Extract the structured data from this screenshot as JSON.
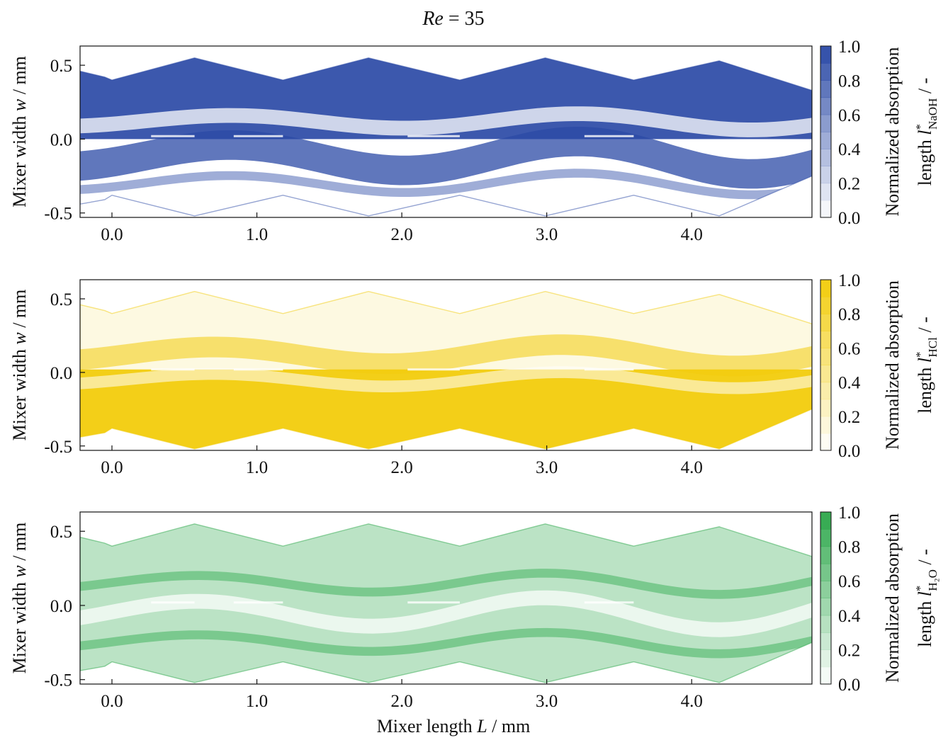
{
  "figure": {
    "title_var": "Re",
    "title_eq": " = 35",
    "xlabel_main": "Mixer length ",
    "xlabel_var": "L",
    "xlabel_unit": " / mm"
  },
  "chart_data": [
    {
      "type": "heatmap",
      "ylabel_main": "Mixer width ",
      "ylabel_var": "w",
      "ylabel_unit": " / mm",
      "xlim": [
        -0.22,
        4.83
      ],
      "ylim": [
        -0.53,
        0.63
      ],
      "x_ticks": [
        0.0,
        1.0,
        2.0,
        3.0,
        4.0
      ],
      "x_tick_labels": [
        "0.0",
        "1.0",
        "2.0",
        "3.0",
        "4.0"
      ],
      "y_ticks": [
        0.5,
        0.0,
        -0.5
      ],
      "y_tick_labels": [
        "0.5",
        "0.0",
        "-0.5"
      ],
      "colorbar": {
        "label_line1": "Normalized absorption",
        "label_line2": "length ",
        "label_var": "l",
        "label_sup": "*",
        "label_sub": "NaOH",
        "label_tail": " / -",
        "ticks": [
          "1.0",
          "0.8",
          "0.6",
          "0.4",
          "0.2",
          "0.0"
        ],
        "color": "#2b4aa6"
      },
      "concentrated_side": "top"
    },
    {
      "type": "heatmap",
      "ylabel_main": "Mixer width ",
      "ylabel_var": "w",
      "ylabel_unit": " / mm",
      "xlim": [
        -0.22,
        4.83
      ],
      "ylim": [
        -0.53,
        0.63
      ],
      "x_ticks": [
        0.0,
        1.0,
        2.0,
        3.0,
        4.0
      ],
      "x_tick_labels": [
        "0.0",
        "1.0",
        "2.0",
        "3.0",
        "4.0"
      ],
      "y_ticks": [
        0.5,
        0.0,
        -0.5
      ],
      "y_tick_labels": [
        "0.5",
        "0.0",
        "-0.5"
      ],
      "colorbar": {
        "label_line1": "Normalized absorption",
        "label_line2": "length ",
        "label_var": "l",
        "label_sup": "*",
        "label_sub": "HCl",
        "label_tail": " / -",
        "ticks": [
          "1.0",
          "0.8",
          "0.6",
          "0.4",
          "0.2",
          "0.0"
        ],
        "color": "#f2cc0c"
      },
      "concentrated_side": "bottom"
    },
    {
      "type": "heatmap",
      "ylabel_main": "Mixer width ",
      "ylabel_var": "w",
      "ylabel_unit": " / mm",
      "xlim": [
        -0.22,
        4.83
      ],
      "ylim": [
        -0.53,
        0.63
      ],
      "x_ticks": [
        0.0,
        1.0,
        2.0,
        3.0,
        4.0
      ],
      "x_tick_labels": [
        "0.0",
        "1.0",
        "2.0",
        "3.0",
        "4.0"
      ],
      "y_ticks": [
        0.5,
        0.0,
        -0.5
      ],
      "y_tick_labels": [
        "0.5",
        "0.0",
        "-0.5"
      ],
      "colorbar": {
        "label_line1": "Normalized absorption",
        "label_line2": "length ",
        "label_var": "l",
        "label_sup": "*",
        "label_sub": "H₂O",
        "label_tail": " / -",
        "ticks": [
          "1.0",
          "0.8",
          "0.6",
          "0.4",
          "0.2",
          "0.0"
        ],
        "color": "#2da84b"
      },
      "concentrated_side": "interface"
    }
  ]
}
